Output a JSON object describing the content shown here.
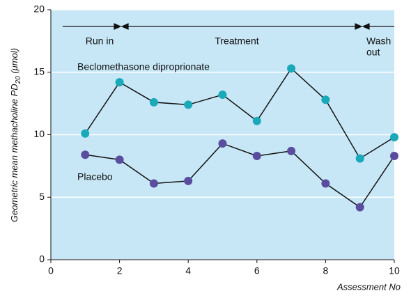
{
  "chart_data": {
    "type": "line",
    "y_label": [
      "Geometric mean methacholine PD",
      "20",
      " (μmol)"
    ],
    "x_label": "Assessment No",
    "x": [
      1,
      2,
      3,
      4,
      5,
      6,
      7,
      8,
      9,
      10
    ],
    "series": [
      {
        "name": "Beclomethasone diproprionate",
        "color": "#19a9b9",
        "values": [
          10.1,
          14.2,
          12.6,
          12.4,
          13.2,
          11.1,
          15.3,
          12.8,
          8.1,
          9.8
        ]
      },
      {
        "name": "Placebo",
        "color": "#5a4c9f",
        "values": [
          8.4,
          8.0,
          6.1,
          6.3,
          9.3,
          8.3,
          8.7,
          6.1,
          4.2,
          8.3
        ]
      }
    ],
    "annotations": [
      [
        "Run in"
      ],
      [
        "Treatment"
      ],
      [
        "Wash",
        "out"
      ]
    ],
    "xlim": [
      0,
      10
    ],
    "xticks": [
      0,
      2,
      4,
      6,
      8,
      10
    ],
    "ylim": [
      0,
      20
    ],
    "yticks": [
      0,
      5,
      10,
      15,
      20
    ],
    "grid": true
  }
}
